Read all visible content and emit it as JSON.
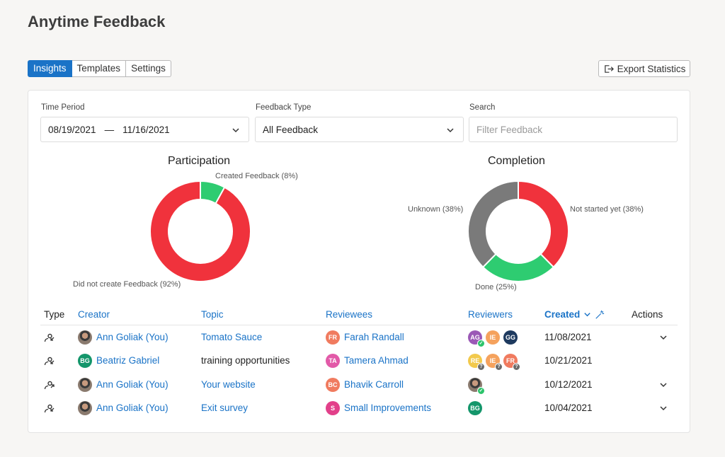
{
  "page": {
    "title": "Anytime Feedback"
  },
  "tabs": [
    {
      "label": "Insights",
      "active": true
    },
    {
      "label": "Templates",
      "active": false
    },
    {
      "label": "Settings",
      "active": false
    }
  ],
  "export": {
    "label": "Export Statistics",
    "icon": "export-icon"
  },
  "filters": {
    "time_period": {
      "label": "Time Period",
      "start": "08/19/2021",
      "separator": "—",
      "end": "11/16/2021"
    },
    "feedback_type": {
      "label": "Feedback Type",
      "value": "All Feedback"
    },
    "search": {
      "label": "Search",
      "placeholder": "Filter Feedback"
    }
  },
  "chart_data": [
    {
      "type": "pie",
      "title": "Participation",
      "categories": [
        "Created Feedback",
        "Did not create Feedback"
      ],
      "values": [
        8,
        92
      ],
      "labels": [
        "Created Feedback (8%)",
        "Did not create Feedback (92%)"
      ],
      "colors": [
        "#2ecc71",
        "#f0323c"
      ]
    },
    {
      "type": "pie",
      "title": "Completion",
      "categories": [
        "Not started yet",
        "Done",
        "Unknown"
      ],
      "values": [
        38,
        25,
        38
      ],
      "labels": [
        "Not started yet (38%)",
        "Done (25%)",
        "Unknown (38%)"
      ],
      "colors": [
        "#f0323c",
        "#2ecc71",
        "#7a7a7a"
      ]
    }
  ],
  "table": {
    "headers": {
      "type": "Type",
      "creator": "Creator",
      "topic": "Topic",
      "reviewees": "Reviewees",
      "reviewers": "Reviewers",
      "created": "Created",
      "actions": "Actions"
    },
    "rows": [
      {
        "type_icon": "incoming-feedback-icon",
        "creator": "Ann Goliak (You)",
        "creator_avatar": "photo",
        "topic": "Tomato Sauce",
        "topic_link": true,
        "reviewee": "Farah Randall",
        "reviewee_initials": "FR",
        "reviewee_color": "#f07b5f",
        "reviewers": [
          {
            "initials": "AG",
            "color": "#9b59b6",
            "badge": "ok"
          },
          {
            "initials": "IE",
            "color": "#f5a25d",
            "badge": ""
          },
          {
            "initials": "GG",
            "color": "#1e3a5f",
            "badge": ""
          }
        ],
        "created": "11/08/2021",
        "expandable": true
      },
      {
        "type_icon": "incoming-feedback-icon",
        "creator": "Beatriz Gabriel",
        "creator_initials": "BG",
        "creator_color": "#14966b",
        "topic": "training opportunities",
        "topic_link": false,
        "reviewee": "Tamera Ahmad",
        "reviewee_initials": "TA",
        "reviewee_color": "#e25aa8",
        "reviewers": [
          {
            "initials": "RE",
            "color": "#f2c94c",
            "badge": "q"
          },
          {
            "initials": "IE",
            "color": "#f5a25d",
            "badge": "q"
          },
          {
            "initials": "FR",
            "color": "#f07b5f",
            "badge": "q"
          }
        ],
        "created": "10/21/2021",
        "expandable": false
      },
      {
        "type_icon": "outgoing-feedback-icon",
        "creator": "Ann Goliak (You)",
        "creator_avatar": "photo",
        "topic": "Your website",
        "topic_link": true,
        "reviewee": "Bhavik Carroll",
        "reviewee_initials": "BC",
        "reviewee_color": "#f07b5f",
        "reviewers": [
          {
            "initials": "",
            "color": "photo",
            "badge": "ok"
          }
        ],
        "created": "10/12/2021",
        "expandable": true
      },
      {
        "type_icon": "incoming-feedback-icon",
        "creator": "Ann Goliak (You)",
        "creator_avatar": "photo",
        "topic": "Exit survey",
        "topic_link": true,
        "reviewee": "Small Improvements",
        "reviewee_initials": "S",
        "reviewee_color": "#e2408a",
        "reviewers": [
          {
            "initials": "BG",
            "color": "#14966b",
            "badge": ""
          }
        ],
        "created": "10/04/2021",
        "expandable": true
      }
    ]
  }
}
